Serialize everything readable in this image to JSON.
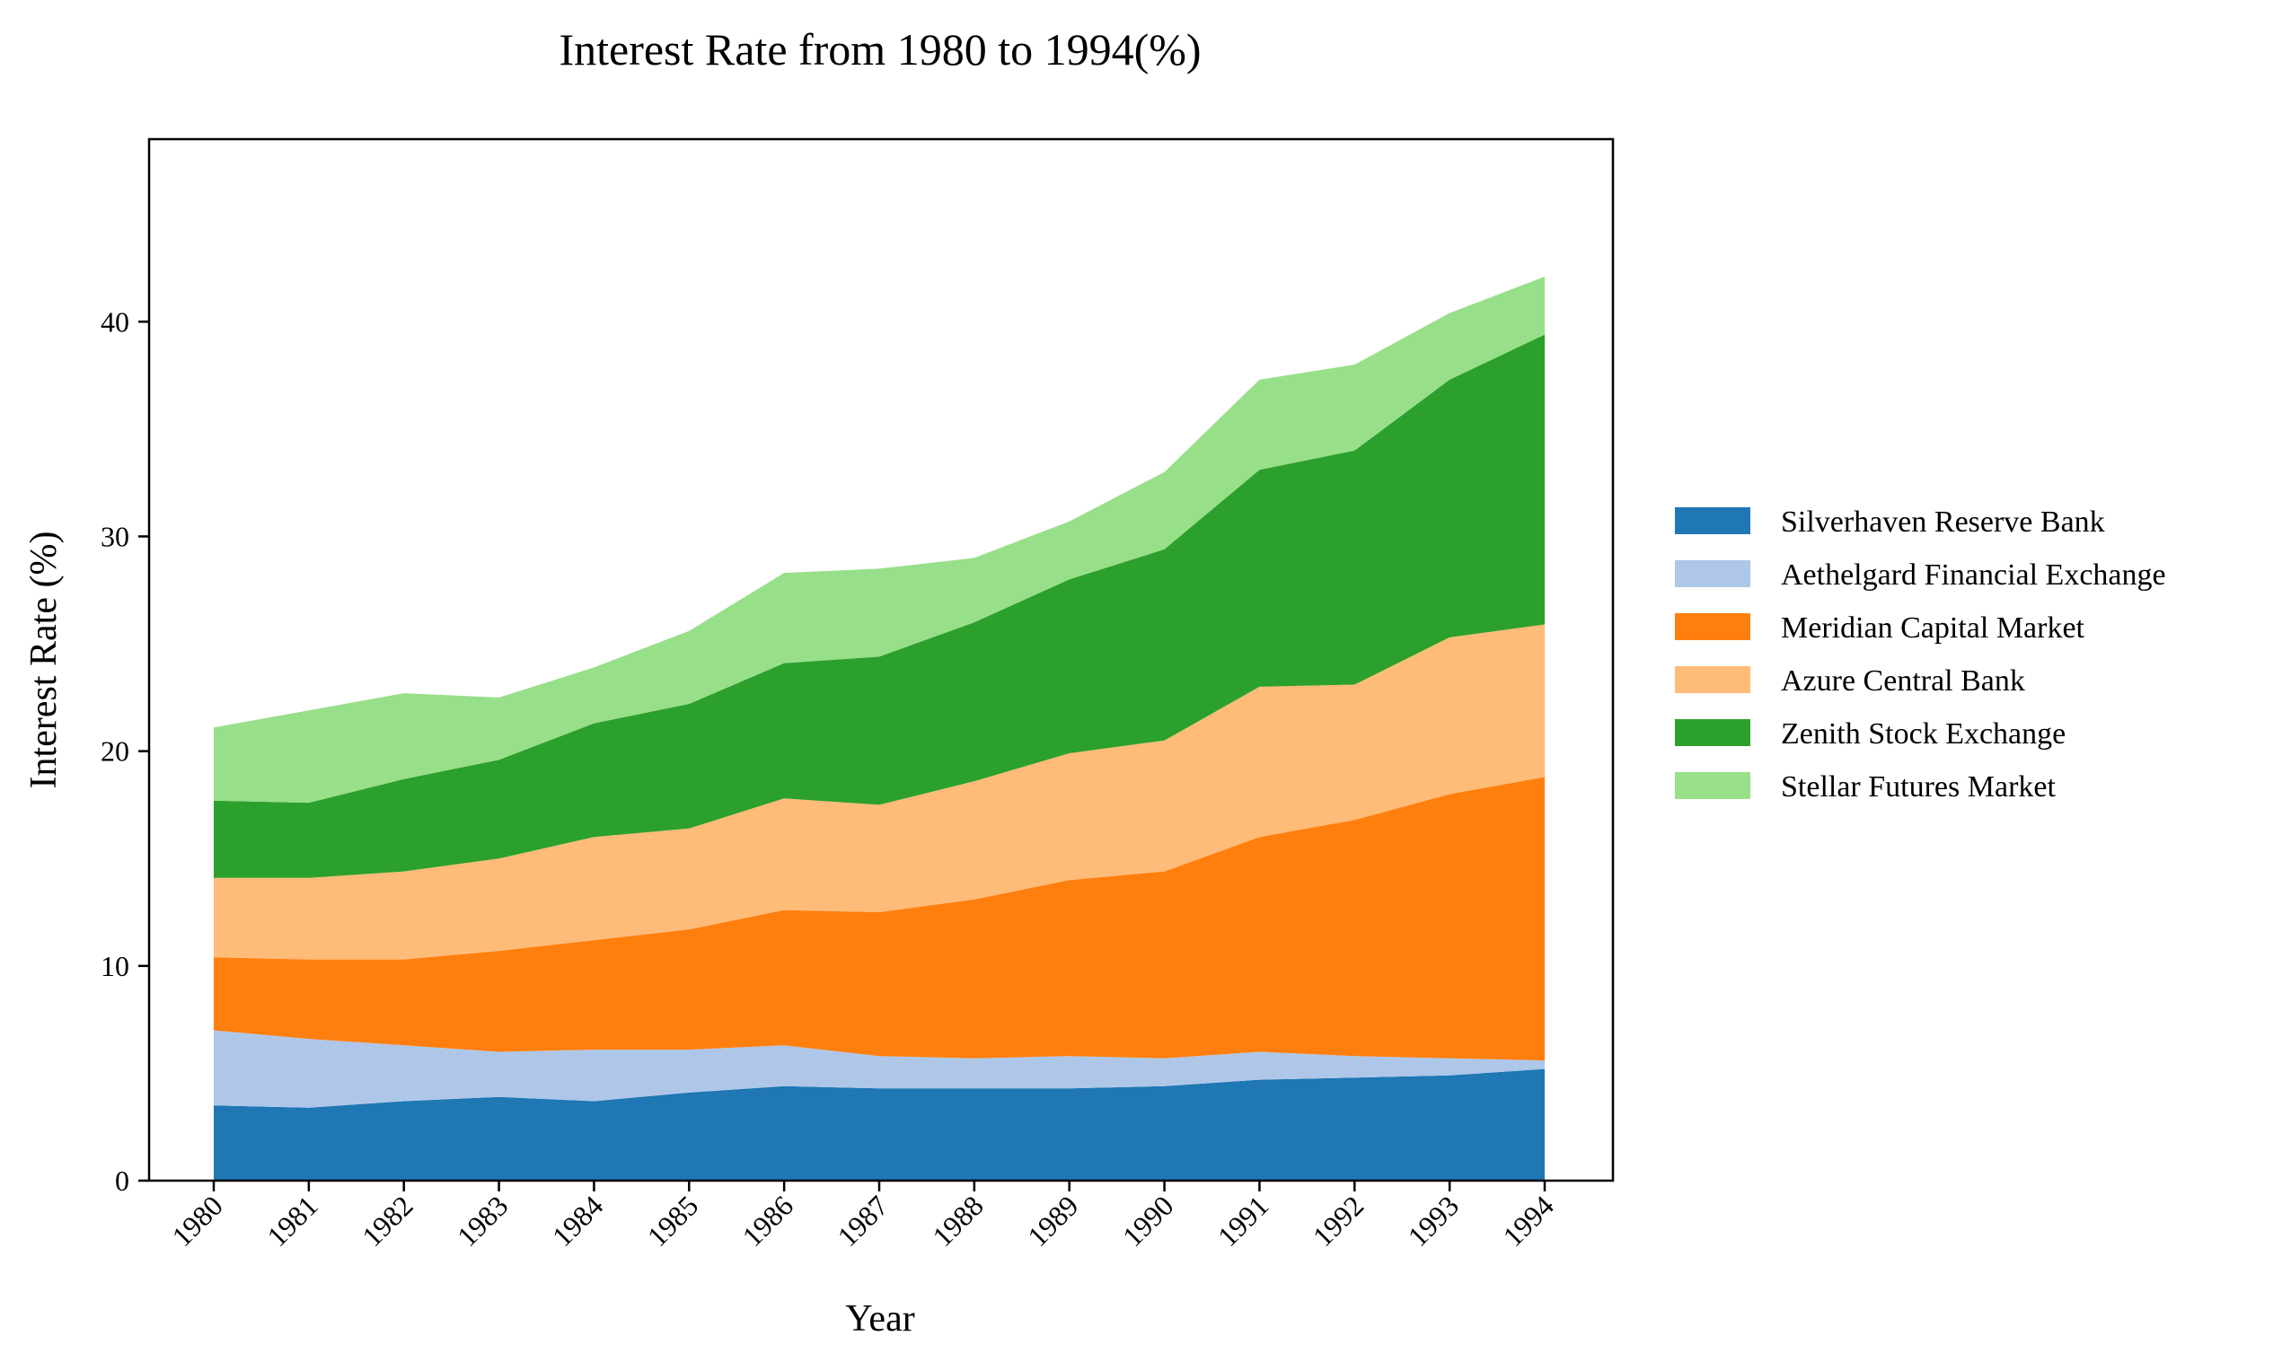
{
  "chart_data": {
    "type": "area",
    "stacked": true,
    "title": "Interest Rate from 1980 to 1994(%)",
    "xlabel": "Year",
    "ylabel": "Interest Rate (%)",
    "x": [
      "1980",
      "1981",
      "1982",
      "1983",
      "1984",
      "1985",
      "1986",
      "1987",
      "1988",
      "1989",
      "1990",
      "1991",
      "1992",
      "1993",
      "1994"
    ],
    "ylim": [
      0,
      48.5
    ],
    "yticks": [
      0,
      10,
      20,
      30,
      40
    ],
    "grid": false,
    "legend_position": "right",
    "series": [
      {
        "name": "Silverhaven Reserve Bank",
        "color": "#1f77b4",
        "values": [
          3.5,
          3.4,
          3.7,
          3.9,
          3.7,
          4.1,
          4.4,
          4.3,
          4.3,
          4.3,
          4.4,
          4.7,
          4.8,
          4.9,
          5.2
        ]
      },
      {
        "name": "Aethelgard Financial Exchange",
        "color": "#aec7e8",
        "values": [
          3.5,
          3.2,
          2.6,
          2.1,
          2.4,
          2.0,
          1.9,
          1.5,
          1.4,
          1.5,
          1.3,
          1.3,
          1.0,
          0.8,
          0.4
        ]
      },
      {
        "name": "Meridian Capital Market",
        "color": "#ff7f0e",
        "values": [
          3.4,
          3.7,
          4.0,
          4.7,
          5.1,
          5.6,
          6.3,
          6.7,
          7.4,
          8.2,
          8.7,
          10.0,
          11.0,
          12.3,
          13.2
        ]
      },
      {
        "name": "Azure Central Bank",
        "color": "#ffbb78",
        "values": [
          3.7,
          3.8,
          4.1,
          4.3,
          4.8,
          4.7,
          5.2,
          5.0,
          5.5,
          5.9,
          6.1,
          7.0,
          6.3,
          7.3,
          7.1
        ]
      },
      {
        "name": "Zenith Stock Exchange",
        "color": "#2ca02c",
        "values": [
          3.6,
          3.5,
          4.3,
          4.6,
          5.3,
          5.8,
          6.3,
          6.9,
          7.4,
          8.1,
          8.9,
          10.1,
          10.9,
          12.0,
          13.5
        ]
      },
      {
        "name": "Stellar Futures Market",
        "color": "#98df8a",
        "values": [
          3.4,
          4.3,
          4.0,
          2.9,
          2.6,
          3.4,
          4.2,
          4.1,
          3.0,
          2.7,
          3.6,
          4.2,
          4.0,
          3.1,
          2.7
        ]
      }
    ]
  }
}
